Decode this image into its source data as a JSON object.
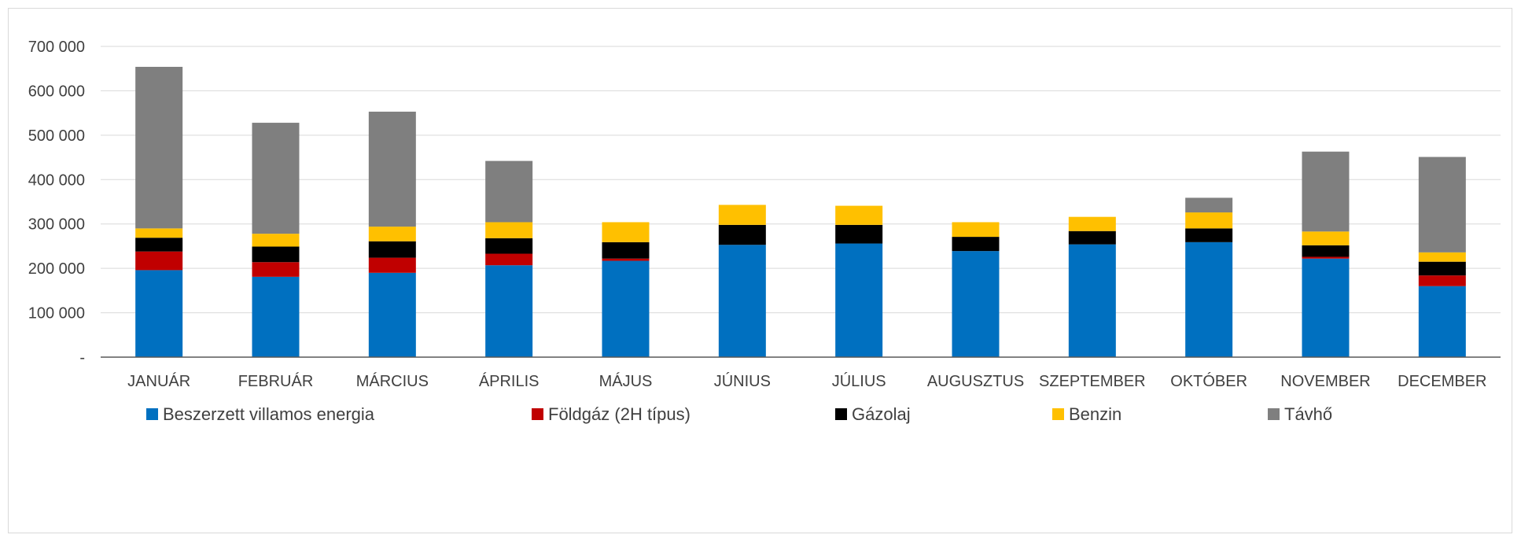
{
  "chart_data": {
    "type": "bar",
    "stacked": true,
    "title": "",
    "xlabel": "",
    "ylabel": "",
    "ylim": [
      0,
      700000
    ],
    "y_ticks": [
      0,
      100000,
      200000,
      300000,
      400000,
      500000,
      600000,
      700000
    ],
    "y_tick_labels": [
      "-",
      "100 000",
      "200 000",
      "300 000",
      "400 000",
      "500 000",
      "600 000",
      "700 000"
    ],
    "grid": true,
    "legend_position": "bottom",
    "categories": [
      "JANUÁR",
      "FEBRUÁR",
      "MÁRCIUS",
      "ÁPRILIS",
      "MÁJUS",
      "JÚNIUS",
      "JÚLIUS",
      "AUGUSZTUS",
      "SZEPTEMBER",
      "OKTÓBER",
      "NOVEMBER",
      "DECEMBER"
    ],
    "series": [
      {
        "name": "Beszerzett villamos energia",
        "color": "#0070C0",
        "values": [
          196000,
          181000,
          190000,
          207000,
          217000,
          253000,
          256000,
          239000,
          254000,
          259000,
          222000,
          160000
        ]
      },
      {
        "name": "Földgáz (2H típus)",
        "color": "#C00000",
        "values": [
          42000,
          33000,
          34000,
          26000,
          5000,
          0,
          0,
          0,
          0,
          0,
          4000,
          24000
        ]
      },
      {
        "name": "Gázolaj",
        "color": "#000000",
        "values": [
          31000,
          35000,
          37000,
          35000,
          37000,
          45000,
          42000,
          32000,
          30000,
          31000,
          26000,
          31000
        ]
      },
      {
        "name": "Benzin",
        "color": "#FFC000",
        "values": [
          21000,
          29000,
          33000,
          36000,
          45000,
          45000,
          43000,
          33000,
          32000,
          36000,
          31000,
          21000
        ]
      },
      {
        "name": "Távhő",
        "color": "#7F7F7F",
        "values": [
          364000,
          250000,
          259000,
          138000,
          0,
          0,
          0,
          0,
          0,
          33000,
          180000,
          215000
        ]
      }
    ]
  }
}
